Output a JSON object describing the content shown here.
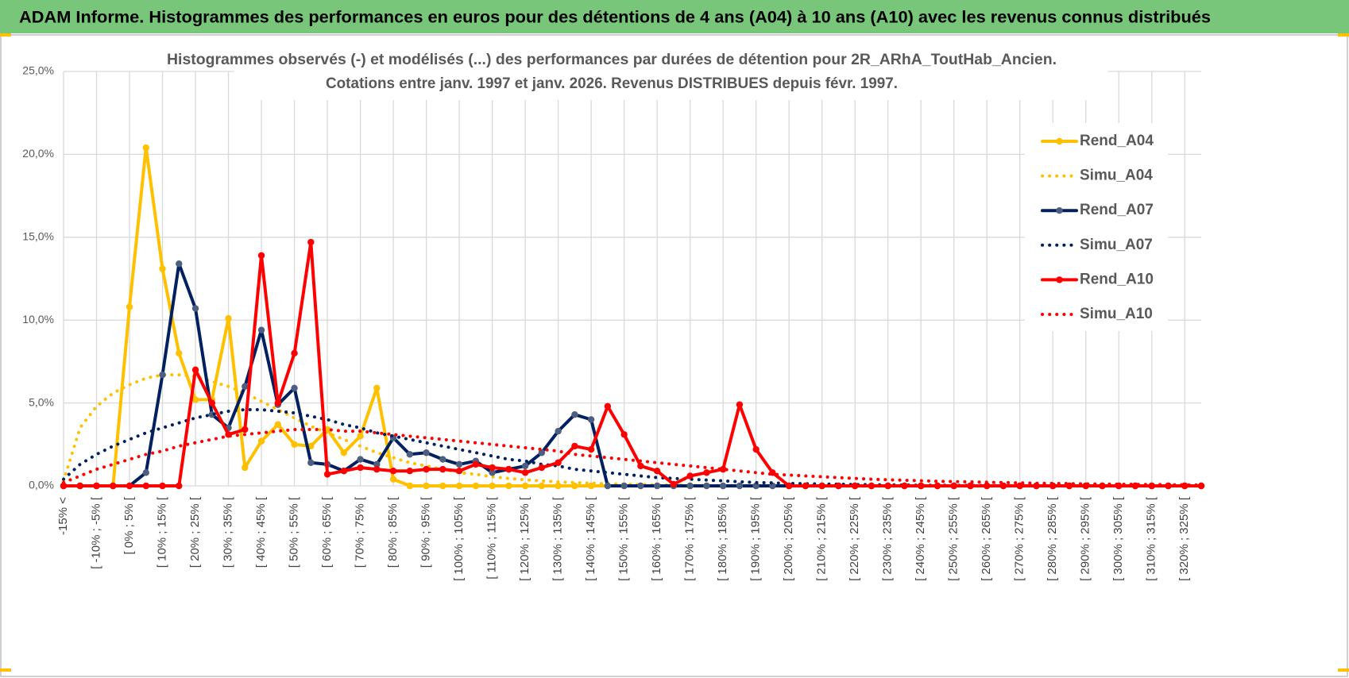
{
  "header": {
    "title": "ADAM Informe. Histogrammes des performances en euros pour des détentions de 4 ans (A04) à 10 ans (A10) avec les revenus connus distribués"
  },
  "chart_data": {
    "type": "line",
    "title": [
      "Histogrammes observés (-) et modélisés (...) des performances par durées de détention pour 2R_ARhA_ToutHab_Ancien.",
      "Cotations entre janv. 1997 et janv. 2026. Revenus DISTRIBUES depuis févr. 1997."
    ],
    "categories": [
      "-15% <",
      null,
      "[ -10% ; -5% [",
      null,
      "[ 0% ; 5% [",
      null,
      "[ 10% ; 15% [",
      null,
      "[ 20% ; 25% [",
      null,
      "[ 30% ; 35% [",
      null,
      "[ 40% ; 45% [",
      null,
      "[ 50% ; 55% [",
      null,
      "[ 60% ; 65% [",
      null,
      "[ 70% ; 75% [",
      null,
      "[ 80% ; 85% [",
      null,
      "[ 90% ; 95% [",
      null,
      "[ 100% ; 105% [",
      null,
      "[ 110% ; 115% [",
      null,
      "[ 120% ; 125% [",
      null,
      "[ 130% ; 135% [",
      null,
      "[ 140% ; 145% [",
      null,
      "[ 150% ; 155% [",
      null,
      "[ 160% ; 165% [",
      null,
      "[ 170% ; 175% [",
      null,
      "[ 180% ; 185% [",
      null,
      "[ 190% ; 195% [",
      null,
      "[ 200% ; 205% [",
      null,
      "[ 210% ; 215% [",
      null,
      "[ 220% ; 225% [",
      null,
      "[ 230% ; 235% [",
      null,
      "[ 240% ; 245% [",
      null,
      "[ 250% ; 255% [",
      null,
      "[ 260% ; 265% [",
      null,
      "[ 270% ; 275% [",
      null,
      "[ 280% ; 285% [",
      null,
      "[ 290% ; 295% [",
      null,
      "[ 300% ; 305% [",
      null,
      "[ 310% ; 315% [",
      null,
      "[ 320% ; 325% [",
      null
    ],
    "series": [
      {
        "name": "Rend_A04",
        "color": "#FFC000",
        "line_style": "solid",
        "markers": true,
        "values": [
          0,
          0,
          0,
          0,
          10.8,
          20.4,
          13.1,
          8.0,
          5.2,
          5.2,
          10.1,
          1.1,
          2.7,
          3.7,
          2.5,
          2.4,
          3.4,
          2.0,
          3.0,
          5.9,
          0.4,
          0,
          0,
          0,
          0,
          0,
          0,
          0,
          0,
          0,
          0,
          0,
          0,
          0,
          0,
          0,
          0,
          0,
          0,
          0,
          0,
          0,
          0,
          0,
          0,
          0,
          0,
          0,
          0,
          0,
          0,
          0,
          0,
          0,
          0,
          0,
          0,
          0,
          0,
          0,
          0,
          0,
          0,
          0,
          0,
          0,
          0,
          0,
          0,
          0
        ]
      },
      {
        "name": "Simu_A04",
        "color": "#FFC000",
        "line_style": "dotted",
        "markers": false,
        "values": [
          0.3,
          3.5,
          4.8,
          5.6,
          6.1,
          6.5,
          6.7,
          6.7,
          6.6,
          6.3,
          6.0,
          5.6,
          5.1,
          4.6,
          4.1,
          3.6,
          3.2,
          2.8,
          2.4,
          2.0,
          1.7,
          1.4,
          1.2,
          1.0,
          0.8,
          0.7,
          0.55,
          0.45,
          0.37,
          0.3,
          0.24,
          0.2,
          0.16,
          0.13,
          0.1,
          0.08,
          0.06,
          0.05,
          0.04,
          0.03,
          0.02,
          0.02,
          0.01,
          0.01,
          0.01,
          0,
          0,
          0,
          0,
          0,
          0,
          0,
          0,
          0,
          0,
          0,
          0,
          0,
          0,
          0,
          0,
          0,
          0,
          0,
          0,
          0,
          0,
          0,
          0,
          0
        ]
      },
      {
        "name": "Rend_A07",
        "color": "#002060",
        "line_style": "solid",
        "markers": true,
        "values": [
          0,
          0,
          0,
          0,
          0,
          0.8,
          6.7,
          13.4,
          10.7,
          4.3,
          3.5,
          6.0,
          9.4,
          4.9,
          5.9,
          1.4,
          1.3,
          0.9,
          1.6,
          1.3,
          2.9,
          1.9,
          2.0,
          1.6,
          1.3,
          1.5,
          0.8,
          1.0,
          1.2,
          2.0,
          3.3,
          4.3,
          4.0,
          0,
          0,
          0,
          0,
          0,
          0,
          0,
          0,
          0,
          0,
          0,
          0,
          0,
          0,
          0,
          0,
          0,
          0,
          0,
          0,
          0,
          0,
          0,
          0,
          0,
          0,
          0,
          0,
          0,
          0,
          0,
          0,
          0,
          0,
          0,
          0,
          0
        ]
      },
      {
        "name": "Simu_A07",
        "color": "#002060",
        "line_style": "dotted",
        "markers": false,
        "values": [
          0.4,
          1.3,
          1.9,
          2.4,
          2.8,
          3.2,
          3.5,
          3.8,
          4.1,
          4.3,
          4.5,
          4.6,
          4.6,
          4.5,
          4.4,
          4.2,
          4.0,
          3.7,
          3.5,
          3.2,
          3.0,
          2.8,
          2.6,
          2.4,
          2.2,
          2.0,
          1.8,
          1.6,
          1.5,
          1.3,
          1.2,
          1.0,
          0.9,
          0.8,
          0.7,
          0.6,
          0.5,
          0.45,
          0.4,
          0.35,
          0.3,
          0.25,
          0.2,
          0.18,
          0.15,
          0.13,
          0.11,
          0.1,
          0.08,
          0.07,
          0.06,
          0.05,
          0.04,
          0.04,
          0.03,
          0.03,
          0.02,
          0.02,
          0.02,
          0.01,
          0.01,
          0.01,
          0.01,
          0.01,
          0,
          0,
          0,
          0,
          0,
          0
        ]
      },
      {
        "name": "Rend_A10",
        "color": "#FF0000",
        "line_style": "solid",
        "markers": true,
        "values": [
          0,
          0,
          0,
          0,
          0,
          0,
          0,
          0,
          7.0,
          5.0,
          3.1,
          3.4,
          13.9,
          5.0,
          8.0,
          14.7,
          0.7,
          0.9,
          1.1,
          1.0,
          0.9,
          0.9,
          1.0,
          1.0,
          0.9,
          1.3,
          1.1,
          1.0,
          0.8,
          1.1,
          1.4,
          2.4,
          2.2,
          4.8,
          3.1,
          1.2,
          0.9,
          0.1,
          0.6,
          0.8,
          1.0,
          4.9,
          2.2,
          0.8,
          0,
          0,
          0,
          0,
          0,
          0,
          0,
          0,
          0,
          0,
          0,
          0,
          0,
          0,
          0,
          0,
          0,
          0,
          0,
          0,
          0,
          0,
          0,
          0,
          0,
          0
        ]
      },
      {
        "name": "Simu_A10",
        "color": "#FF0000",
        "line_style": "dotted",
        "markers": false,
        "values": [
          0.2,
          0.6,
          1.0,
          1.3,
          1.6,
          1.9,
          2.1,
          2.4,
          2.6,
          2.8,
          3.0,
          3.1,
          3.2,
          3.3,
          3.4,
          3.4,
          3.4,
          3.3,
          3.3,
          3.2,
          3.1,
          3.0,
          2.9,
          2.8,
          2.7,
          2.6,
          2.5,
          2.4,
          2.3,
          2.2,
          2.1,
          1.9,
          1.8,
          1.7,
          1.6,
          1.5,
          1.4,
          1.3,
          1.2,
          1.1,
          1.0,
          0.9,
          0.8,
          0.7,
          0.65,
          0.6,
          0.55,
          0.5,
          0.45,
          0.4,
          0.37,
          0.34,
          0.31,
          0.28,
          0.26,
          0.24,
          0.22,
          0.2,
          0.18,
          0.16,
          0.15,
          0.14,
          0.12,
          0.11,
          0.1,
          0.09,
          0.08,
          0.07,
          0.06,
          0.05
        ]
      }
    ],
    "ylim": [
      0,
      25
    ],
    "yticks": [
      {
        "value": 0,
        "label": "0,0%"
      },
      {
        "value": 5,
        "label": "5,0%"
      },
      {
        "value": 10,
        "label": "10,0%"
      },
      {
        "value": 15,
        "label": "15,0%"
      },
      {
        "value": 20,
        "label": "20,0%"
      },
      {
        "value": 25,
        "label": "25,0%"
      }
    ],
    "grid": true,
    "legend": "right"
  }
}
